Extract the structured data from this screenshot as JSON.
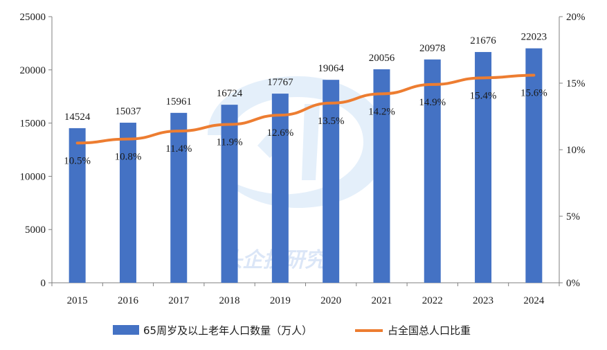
{
  "chart_data": {
    "type": "bar",
    "categories": [
      "2015",
      "2016",
      "2017",
      "2018",
      "2019",
      "2020",
      "2021",
      "2022",
      "2023",
      "2024"
    ],
    "series": [
      {
        "name": "65周岁及以上老年人口数量（万人）",
        "type": "bar",
        "axis": "left",
        "values": [
          14524,
          15037,
          15961,
          16724,
          17767,
          19064,
          20056,
          20978,
          21676,
          22023
        ],
        "labels": [
          "14524",
          "15037",
          "15961",
          "16724",
          "17767",
          "19064",
          "20056",
          "20978",
          "21676",
          "22023"
        ]
      },
      {
        "name": "占全国总人口比重",
        "type": "line",
        "axis": "right",
        "values": [
          10.5,
          10.8,
          11.4,
          11.9,
          12.6,
          13.5,
          14.2,
          14.9,
          15.4,
          15.6
        ],
        "labels": [
          "10.5%",
          "10.8%",
          "11.4%",
          "11.9%",
          "12.6%",
          "13.5%",
          "14.2%",
          "14.9%",
          "15.4%",
          "15.6%"
        ]
      }
    ],
    "left_axis": {
      "ylim": [
        0,
        25000
      ],
      "ticks": [
        "0",
        "5000",
        "10000",
        "15000",
        "20000",
        "25000"
      ]
    },
    "right_axis": {
      "ylim": [
        0,
        20
      ],
      "ticks": [
        "0%",
        "5%",
        "10%",
        "15%",
        "20%"
      ]
    },
    "grid": false,
    "legend_position": "bottom"
  },
  "colors": {
    "bar": "#4472c4",
    "line": "#ed7d31",
    "axis": "#7f7f7f"
  },
  "watermark": {
    "text": "头企技研究"
  }
}
